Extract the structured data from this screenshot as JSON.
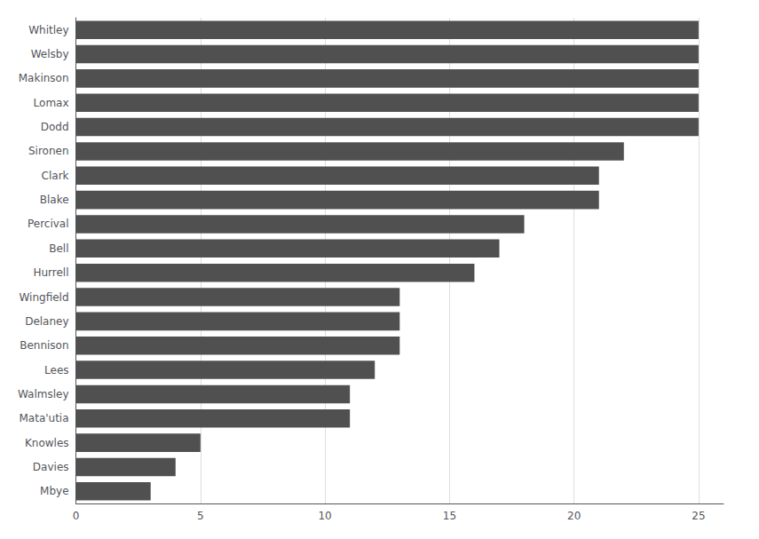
{
  "chart_data": {
    "type": "bar",
    "orientation": "horizontal",
    "categories": [
      "Whitley",
      "Welsby",
      "Makinson",
      "Lomax",
      "Dodd",
      "Sironen",
      "Clark",
      "Blake",
      "Percival",
      "Bell",
      "Hurrell",
      "Wingfield",
      "Delaney",
      "Bennison",
      "Lees",
      "Walmsley",
      "Mata'utia",
      "Knowles",
      "Davies",
      "Mbye"
    ],
    "values": [
      25,
      25,
      25,
      25,
      25,
      22,
      21,
      21,
      18,
      17,
      16,
      13,
      13,
      13,
      12,
      11,
      11,
      5,
      4,
      3
    ],
    "color": "#505050",
    "xlim": [
      0,
      26
    ],
    "xticks": [
      0,
      5,
      10,
      15,
      20,
      25
    ],
    "grid": true
  }
}
